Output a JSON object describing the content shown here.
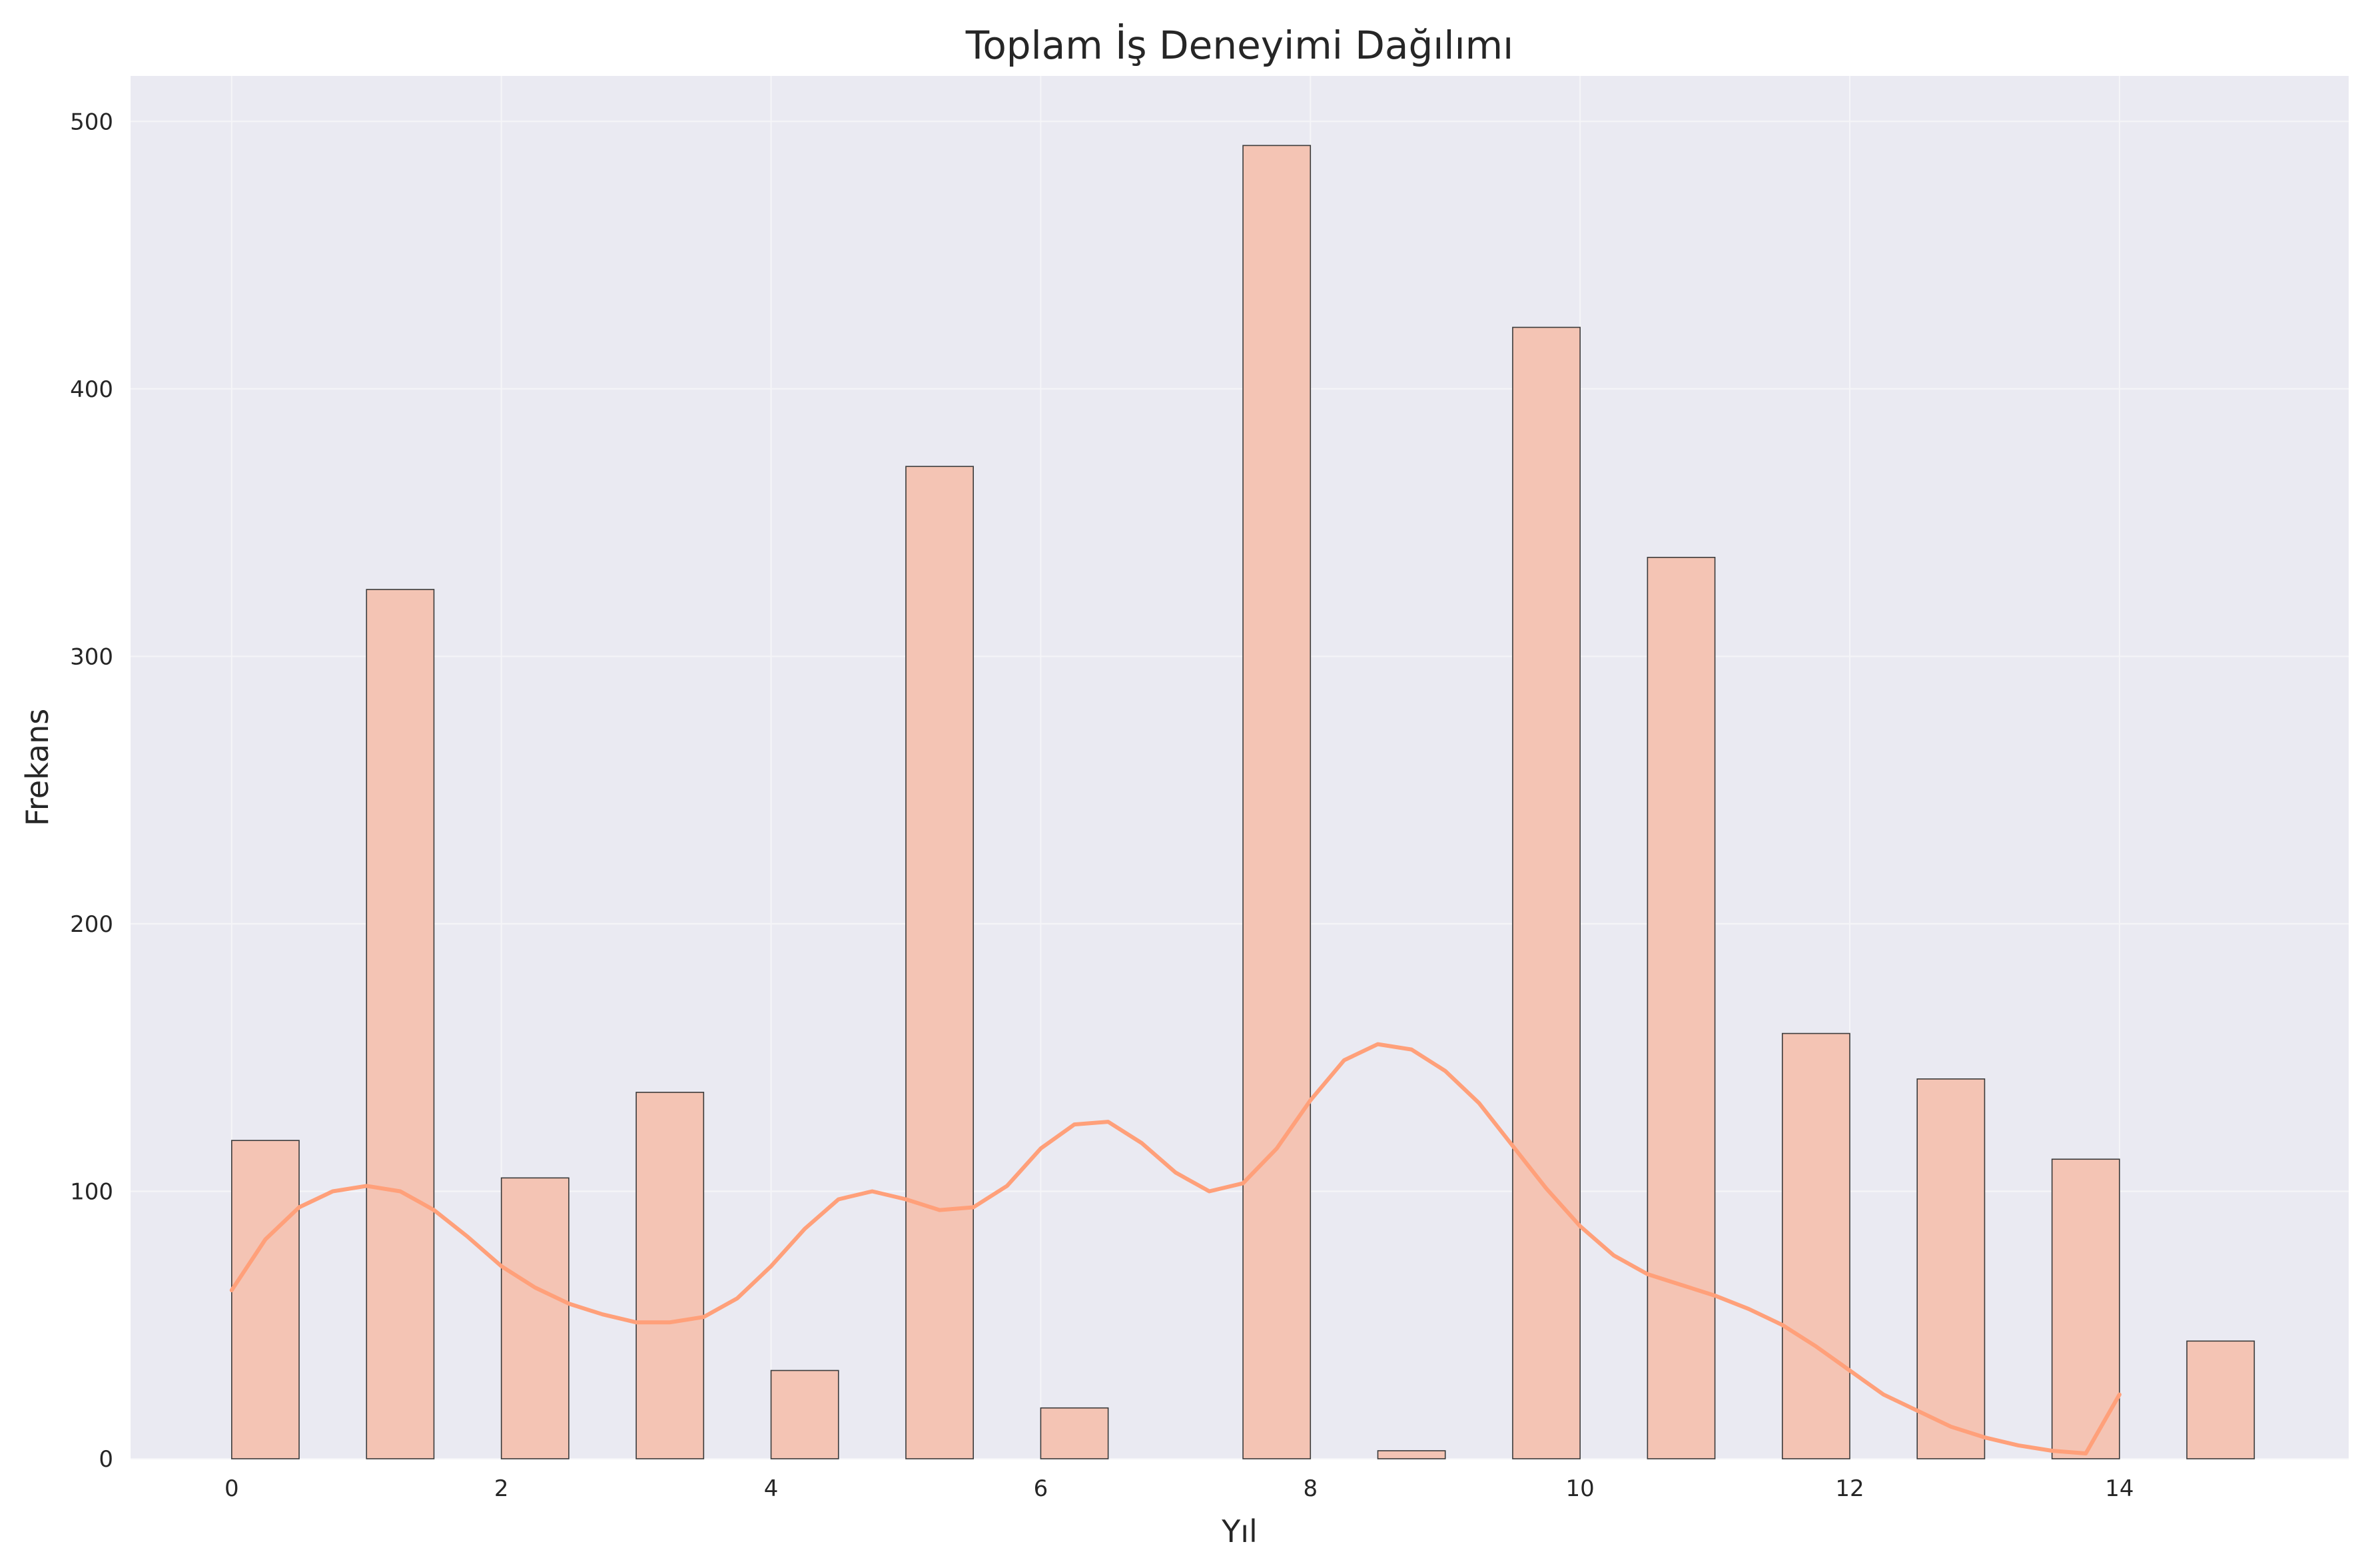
{
  "chart_data": {
    "type": "histogram",
    "title": "Toplam İş Deneyimi Dağılımı",
    "xlabel": "Yıl",
    "ylabel": "Frekans",
    "xlim": [
      -0.75,
      15.7
    ],
    "ylim": [
      0,
      517
    ],
    "xticks": [
      0,
      2,
      4,
      6,
      8,
      10,
      12,
      14
    ],
    "yticks": [
      0,
      100,
      200,
      300,
      400,
      500
    ],
    "grid": true,
    "bin_width": 0.5,
    "bars": [
      {
        "x": 0,
        "value": 119
      },
      {
        "x": 1,
        "value": 325
      },
      {
        "x": 2,
        "value": 105
      },
      {
        "x": 3,
        "value": 137
      },
      {
        "x": 4,
        "value": 33
      },
      {
        "x": 5,
        "value": 371
      },
      {
        "x": 6,
        "value": 19
      },
      {
        "x": 7.5,
        "value": 491
      },
      {
        "x": 8.5,
        "value": 3
      },
      {
        "x": 9.5,
        "value": 423
      },
      {
        "x": 10.5,
        "value": 337
      },
      {
        "x": 11.5,
        "value": 159
      },
      {
        "x": 12.5,
        "value": 142
      },
      {
        "x": 13.5,
        "value": 112
      },
      {
        "x": 14.5,
        "value": 44
      }
    ],
    "kde": {
      "x": [
        0,
        0.25,
        0.5,
        0.75,
        1.0,
        1.25,
        1.5,
        1.75,
        2.0,
        2.25,
        2.5,
        2.75,
        3.0,
        3.25,
        3.5,
        3.75,
        4.0,
        4.25,
        4.5,
        4.75,
        5.0,
        5.25,
        5.5,
        5.75,
        6.0,
        6.25,
        6.5,
        6.75,
        7.0,
        7.25,
        7.5,
        7.75,
        8.0,
        8.25,
        8.5,
        8.75,
        9.0,
        9.25,
        9.5,
        9.75,
        10.0,
        10.25,
        10.5,
        10.75,
        11.0,
        11.25,
        11.5,
        11.75,
        12.0,
        12.25,
        12.5,
        12.75,
        13.0,
        13.25,
        13.5,
        13.75,
        14.0
      ],
      "y": [
        63,
        82,
        94,
        100,
        102,
        100,
        93,
        83,
        72,
        64,
        58,
        54,
        51,
        51,
        53,
        60,
        72,
        86,
        97,
        100,
        97,
        93,
        94,
        102,
        116,
        125,
        126,
        118,
        107,
        100,
        103,
        116,
        134,
        149,
        155,
        153,
        145,
        133,
        117,
        101,
        87,
        76,
        69,
        65,
        61,
        56,
        50,
        42,
        33,
        24,
        18,
        12,
        8,
        5,
        3,
        2,
        24
      ]
    },
    "colors": {
      "bar_fill": "#f4c4b4",
      "bar_edge": "#3a3a3a",
      "kde_line": "#ffa07a",
      "plot_bg": "#eaeaf2",
      "grid": "#f5f5f8"
    }
  }
}
